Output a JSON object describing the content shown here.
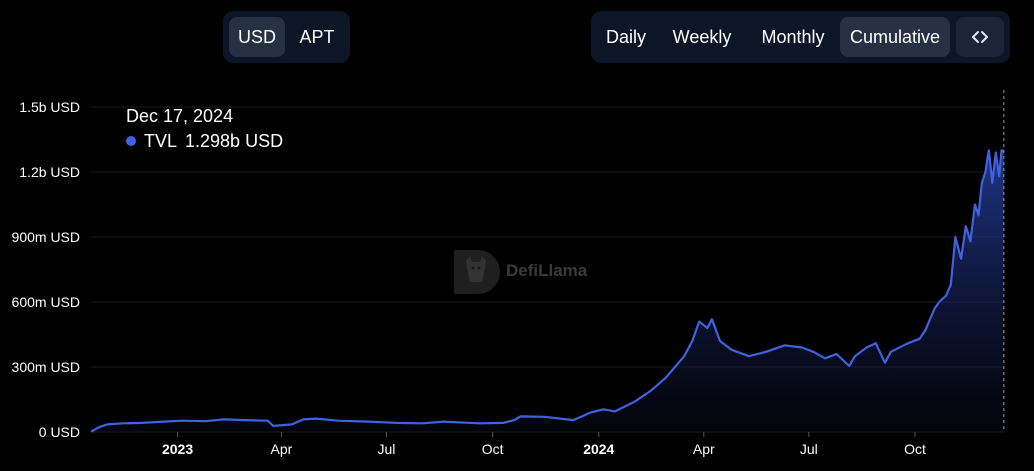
{
  "currency_toggle": {
    "options": [
      "USD",
      "APT"
    ],
    "selected": "USD"
  },
  "range_toggle": {
    "options": [
      "Daily",
      "Weekly",
      "Monthly",
      "Cumulative"
    ],
    "selected": "Cumulative"
  },
  "embed_button": {
    "icon": "code-icon",
    "label": "<>"
  },
  "watermark": {
    "text": "DefiLlama"
  },
  "tooltip": {
    "date": "Dec 17, 2024",
    "series": "TVL",
    "value": "1.298b USD"
  },
  "colors": {
    "line": "#3f63e0",
    "background": "#000000",
    "grid": "#1b1b1b",
    "panel": "#0d1626"
  },
  "chart_data": {
    "type": "area",
    "y_ticks": [
      {
        "value": 0,
        "label": "0 USD"
      },
      {
        "value": 300,
        "label": "300m USD"
      },
      {
        "value": 600,
        "label": "600m USD"
      },
      {
        "value": 900,
        "label": "900m USD"
      },
      {
        "value": 1200,
        "label": "1.2b USD"
      },
      {
        "value": 1500,
        "label": "1.5b USD"
      }
    ],
    "ylim": [
      0,
      1500
    ],
    "y_unit": "million USD",
    "xlim": [
      "2022-10-18",
      "2024-12-18"
    ],
    "x_ticks": [
      {
        "date": "2023-01-01",
        "label": "2023",
        "bold": true
      },
      {
        "date": "2023-04-01",
        "label": "Apr",
        "bold": false
      },
      {
        "date": "2023-07-01",
        "label": "Jul",
        "bold": false
      },
      {
        "date": "2023-10-01",
        "label": "Oct",
        "bold": false
      },
      {
        "date": "2024-01-01",
        "label": "2024",
        "bold": true
      },
      {
        "date": "2024-04-01",
        "label": "Apr",
        "bold": false
      },
      {
        "date": "2024-07-01",
        "label": "Jul",
        "bold": false
      },
      {
        "date": "2024-10-01",
        "label": "Oct",
        "bold": false
      }
    ],
    "series": [
      {
        "name": "TVL",
        "points": [
          [
            "2022-10-18",
            2
          ],
          [
            "2022-10-25",
            22
          ],
          [
            "2022-11-01",
            35
          ],
          [
            "2022-11-15",
            40
          ],
          [
            "2022-12-01",
            42
          ],
          [
            "2022-12-20",
            48
          ],
          [
            "2023-01-05",
            52
          ],
          [
            "2023-01-25",
            50
          ],
          [
            "2023-02-10",
            58
          ],
          [
            "2023-02-28",
            55
          ],
          [
            "2023-03-20",
            52
          ],
          [
            "2023-03-25",
            28
          ],
          [
            "2023-04-10",
            35
          ],
          [
            "2023-04-20",
            58
          ],
          [
            "2023-05-01",
            62
          ],
          [
            "2023-05-20",
            52
          ],
          [
            "2023-06-15",
            48
          ],
          [
            "2023-07-10",
            42
          ],
          [
            "2023-08-01",
            40
          ],
          [
            "2023-08-20",
            48
          ],
          [
            "2023-09-01",
            45
          ],
          [
            "2023-09-20",
            40
          ],
          [
            "2023-10-10",
            42
          ],
          [
            "2023-10-20",
            55
          ],
          [
            "2023-10-25",
            72
          ],
          [
            "2023-11-15",
            70
          ],
          [
            "2023-12-10",
            55
          ],
          [
            "2023-12-25",
            90
          ],
          [
            "2024-01-05",
            105
          ],
          [
            "2024-01-15",
            95
          ],
          [
            "2024-02-01",
            140
          ],
          [
            "2024-02-15",
            190
          ],
          [
            "2024-02-28",
            250
          ],
          [
            "2024-03-15",
            350
          ],
          [
            "2024-03-22",
            420
          ],
          [
            "2024-03-28",
            510
          ],
          [
            "2024-04-04",
            480
          ],
          [
            "2024-04-08",
            520
          ],
          [
            "2024-04-15",
            420
          ],
          [
            "2024-04-25",
            380
          ],
          [
            "2024-05-10",
            350
          ],
          [
            "2024-05-25",
            370
          ],
          [
            "2024-06-10",
            400
          ],
          [
            "2024-06-25",
            390
          ],
          [
            "2024-07-05",
            370
          ],
          [
            "2024-07-15",
            340
          ],
          [
            "2024-07-25",
            360
          ],
          [
            "2024-08-05",
            305
          ],
          [
            "2024-08-10",
            350
          ],
          [
            "2024-08-20",
            390
          ],
          [
            "2024-08-28",
            410
          ],
          [
            "2024-09-05",
            320
          ],
          [
            "2024-09-10",
            370
          ],
          [
            "2024-09-25",
            410
          ],
          [
            "2024-10-05",
            430
          ],
          [
            "2024-10-10",
            470
          ],
          [
            "2024-10-18",
            570
          ],
          [
            "2024-10-22",
            600
          ],
          [
            "2024-10-28",
            630
          ],
          [
            "2024-11-01",
            680
          ],
          [
            "2024-11-05",
            900
          ],
          [
            "2024-11-10",
            800
          ],
          [
            "2024-11-14",
            950
          ],
          [
            "2024-11-18",
            880
          ],
          [
            "2024-11-22",
            1050
          ],
          [
            "2024-11-25",
            1000
          ],
          [
            "2024-11-28",
            1150
          ],
          [
            "2024-12-01",
            1200
          ],
          [
            "2024-12-04",
            1300
          ],
          [
            "2024-12-07",
            1150
          ],
          [
            "2024-12-10",
            1290
          ],
          [
            "2024-12-13",
            1180
          ],
          [
            "2024-12-15",
            1300
          ],
          [
            "2024-12-17",
            1298
          ]
        ]
      }
    ]
  }
}
